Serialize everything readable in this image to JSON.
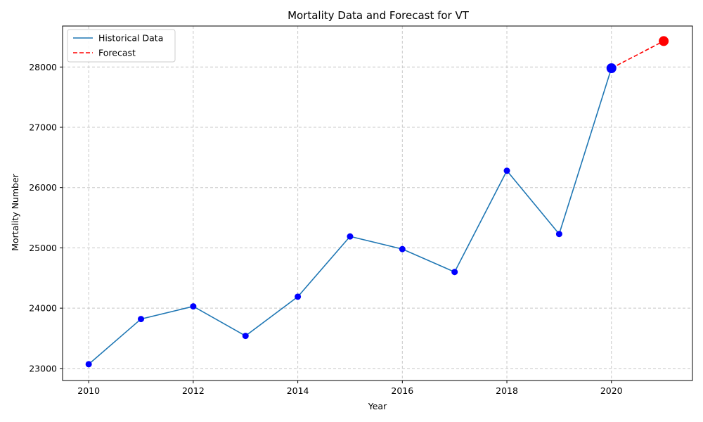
{
  "chart_data": {
    "type": "line",
    "title": "Mortality Data and Forecast for VT",
    "xlabel": "Year",
    "ylabel": "Mortality Number",
    "xlim": [
      2009.5,
      2021.55
    ],
    "ylim": [
      22800,
      28680
    ],
    "x_ticks": [
      2010,
      2012,
      2014,
      2016,
      2018,
      2020
    ],
    "y_ticks": [
      23000,
      24000,
      25000,
      26000,
      27000,
      28000
    ],
    "grid": true,
    "legend_position": "top-left",
    "series": [
      {
        "name": "Historical Data",
        "style": "solid",
        "color": "#1f77b4",
        "marker_color": "#0000ff",
        "x": [
          2010,
          2011,
          2012,
          2013,
          2014,
          2015,
          2016,
          2017,
          2018,
          2019,
          2020
        ],
        "y": [
          23070,
          23820,
          24030,
          23540,
          24190,
          25190,
          24980,
          24600,
          26280,
          25230,
          27980
        ]
      },
      {
        "name": "Forecast",
        "style": "dashed",
        "color": "#ff0000",
        "marker_color": "#ff0000",
        "x": [
          2020,
          2021
        ],
        "y": [
          27980,
          28430
        ]
      }
    ],
    "highlight_points": [
      {
        "x": 2020,
        "y": 27980,
        "color": "#0000ff"
      },
      {
        "x": 2021,
        "y": 28430,
        "color": "#ff0000"
      }
    ]
  }
}
